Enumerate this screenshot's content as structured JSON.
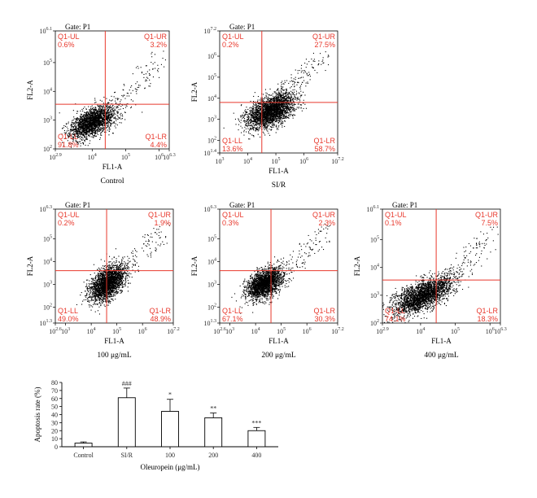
{
  "chart_data": [
    {
      "type": "scatter",
      "gate": "Gate: P1",
      "condition_label": "Control",
      "xlabel": "FL1-A",
      "ylabel": "FL2-A",
      "x_ticks": [
        {
          "base": "10",
          "exp": "2.9"
        },
        {
          "base": "10",
          "exp": "4"
        },
        {
          "base": "10",
          "exp": "5"
        },
        {
          "base": "10",
          "exp": "6"
        },
        {
          "base": "10",
          "exp": "6.3"
        }
      ],
      "y_ticks": [
        {
          "base": "10",
          "exp": "2"
        },
        {
          "base": "10",
          "exp": "3"
        },
        {
          "base": "10",
          "exp": "4"
        },
        {
          "base": "10",
          "exp": "5"
        },
        {
          "base": "10",
          "exp": "6.1"
        }
      ],
      "xlim": [
        2.9,
        6.3
      ],
      "ylim": [
        2,
        6.1
      ],
      "gate_lines": {
        "x": 4.39,
        "y": 3.55
      },
      "quadrants": {
        "UL": "0.6%",
        "UR": "3.2%",
        "LL": "91.8%",
        "LR": "4.4%"
      },
      "quadrant_names": {
        "UL": "Q1-UL",
        "UR": "Q1-UR",
        "LL": "Q1-LL",
        "LR": "Q1-LR"
      },
      "population": {
        "center": [
          4.0,
          2.95
        ],
        "spread": [
          0.32,
          0.28
        ],
        "tilt": 0.55,
        "count": 2200,
        "seed": 11
      }
    },
    {
      "type": "scatter",
      "gate": "Gate: P1",
      "condition_label": "SI/R",
      "xlabel": "FL1-A",
      "ylabel": "FL2-A",
      "x_ticks": [
        {
          "base": "10",
          "exp": "3"
        },
        {
          "base": "10",
          "exp": "4"
        },
        {
          "base": "10",
          "exp": "5"
        },
        {
          "base": "10",
          "exp": "6"
        },
        {
          "base": "10",
          "exp": "7.2"
        }
      ],
      "y_ticks": [
        {
          "base": "10",
          "exp": "1.4"
        },
        {
          "base": "10",
          "exp": "2"
        },
        {
          "base": "10",
          "exp": "3"
        },
        {
          "base": "10",
          "exp": "4"
        },
        {
          "base": "10",
          "exp": "5"
        },
        {
          "base": "10",
          "exp": "6"
        },
        {
          "base": "10",
          "exp": "7.2"
        }
      ],
      "xlim": [
        3,
        7.2
      ],
      "ylim": [
        1.4,
        7.2
      ],
      "gate_lines": {
        "x": 4.5,
        "y": 3.8
      },
      "quadrants": {
        "UL": "0.2%",
        "UR": "27.5%",
        "LL": "13.6%",
        "LR": "58.7%"
      },
      "quadrant_names": {
        "UL": "Q1-UL",
        "UR": "Q1-UR",
        "LL": "Q1-LL",
        "LR": "Q1-LR"
      },
      "population": {
        "center": [
          4.8,
          3.4
        ],
        "spread": [
          0.42,
          0.4
        ],
        "tilt": 0.5,
        "count": 2600,
        "seed": 23
      }
    },
    {
      "type": "scatter",
      "gate": "Gate: P1",
      "condition_label": "100 μg/mL",
      "xlabel": "FL1-A",
      "ylabel": "FL2-A",
      "x_ticks": [
        {
          "base": "10",
          "exp": "2.6"
        },
        {
          "base": "10",
          "exp": "3"
        },
        {
          "base": "10",
          "exp": "4"
        },
        {
          "base": "10",
          "exp": "5"
        },
        {
          "base": "10",
          "exp": "6"
        },
        {
          "base": "10",
          "exp": "7.2"
        }
      ],
      "y_ticks": [
        {
          "base": "10",
          "exp": "1.3"
        },
        {
          "base": "10",
          "exp": "2"
        },
        {
          "base": "10",
          "exp": "3"
        },
        {
          "base": "10",
          "exp": "4"
        },
        {
          "base": "10",
          "exp": "5"
        },
        {
          "base": "10",
          "exp": "6.3"
        }
      ],
      "xlim": [
        2.6,
        7.2
      ],
      "ylim": [
        1.3,
        6.3
      ],
      "gate_lines": {
        "x": 4.6,
        "y": 3.6
      },
      "quadrants": {
        "UL": "0.2%",
        "UR": "1.9%",
        "LL": "49.0%",
        "LR": "48.9%"
      },
      "quadrant_names": {
        "UL": "Q1-UL",
        "UR": "Q1-UR",
        "LL": "Q1-LL",
        "LR": "Q1-LR"
      },
      "population": {
        "center": [
          4.6,
          3.05
        ],
        "spread": [
          0.32,
          0.38
        ],
        "tilt": 0.45,
        "count": 2400,
        "seed": 37
      }
    },
    {
      "type": "scatter",
      "gate": "Gate: P1",
      "condition_label": "200 μg/mL",
      "xlabel": "FL1-A",
      "ylabel": "FL2-A",
      "x_ticks": [
        {
          "base": "10",
          "exp": "2.6"
        },
        {
          "base": "10",
          "exp": "3"
        },
        {
          "base": "10",
          "exp": "4"
        },
        {
          "base": "10",
          "exp": "5"
        },
        {
          "base": "10",
          "exp": "6"
        },
        {
          "base": "10",
          "exp": "7.2"
        }
      ],
      "y_ticks": [
        {
          "base": "10",
          "exp": "1.3"
        },
        {
          "base": "10",
          "exp": "2"
        },
        {
          "base": "10",
          "exp": "3"
        },
        {
          "base": "10",
          "exp": "4"
        },
        {
          "base": "10",
          "exp": "5"
        },
        {
          "base": "10",
          "exp": "6.3"
        }
      ],
      "xlim": [
        2.6,
        7.2
      ],
      "ylim": [
        1.3,
        6.3
      ],
      "gate_lines": {
        "x": 4.6,
        "y": 3.6
      },
      "quadrants": {
        "UL": "0.3%",
        "UR": "2.3%",
        "LL": "67.1%",
        "LR": "30.3%"
      },
      "quadrant_names": {
        "UL": "Q1-UL",
        "UR": "Q1-UR",
        "LL": "Q1-LL",
        "LR": "Q1-LR"
      },
      "population": {
        "center": [
          4.35,
          3.05
        ],
        "spread": [
          0.34,
          0.34
        ],
        "tilt": 0.45,
        "count": 2200,
        "seed": 53
      }
    },
    {
      "type": "scatter",
      "gate": "Gate: P1",
      "condition_label": "400 μg/mL",
      "xlabel": "FL1-A",
      "ylabel": "FL2-A",
      "x_ticks": [
        {
          "base": "10",
          "exp": "2.9"
        },
        {
          "base": "10",
          "exp": "4"
        },
        {
          "base": "10",
          "exp": "5"
        },
        {
          "base": "10",
          "exp": "6"
        },
        {
          "base": "10",
          "exp": "6.3"
        }
      ],
      "y_ticks": [
        {
          "base": "10",
          "exp": "2"
        },
        {
          "base": "10",
          "exp": "3"
        },
        {
          "base": "10",
          "exp": "4"
        },
        {
          "base": "10",
          "exp": "5"
        },
        {
          "base": "10",
          "exp": "6.1"
        }
      ],
      "xlim": [
        2.9,
        6.3
      ],
      "ylim": [
        2,
        6.1
      ],
      "gate_lines": {
        "x": 4.45,
        "y": 3.55
      },
      "quadrants": {
        "UL": "0.1%",
        "UR": "7.5%",
        "LL": "74.1%",
        "LR": "18.3%"
      },
      "quadrant_names": {
        "UL": "Q1-UL",
        "UR": "Q1-UR",
        "LL": "Q1-LL",
        "LR": "Q1-LR"
      },
      "population": {
        "center": [
          4.05,
          3.0
        ],
        "spread": [
          0.42,
          0.34
        ],
        "tilt": 0.65,
        "count": 2500,
        "seed": 71
      }
    },
    {
      "type": "bar",
      "categories": [
        "Control",
        "SI/R",
        "100",
        "200",
        "400"
      ],
      "values": [
        4.5,
        61,
        44,
        36,
        20
      ],
      "errors": [
        1.5,
        12,
        15,
        6,
        4
      ],
      "annotations": [
        "",
        "###",
        "*",
        "**",
        "***"
      ],
      "xlabel": "Oleuropein (μg/mL)",
      "ylabel": "Apoptosis rate (%)",
      "ylim": [
        0,
        80
      ],
      "y_ticks": [
        0,
        10,
        20,
        30,
        40,
        50,
        60,
        70,
        80
      ]
    }
  ],
  "colors": {
    "gate": "#e8382c",
    "dots": "#000000",
    "axis": "#000000"
  }
}
